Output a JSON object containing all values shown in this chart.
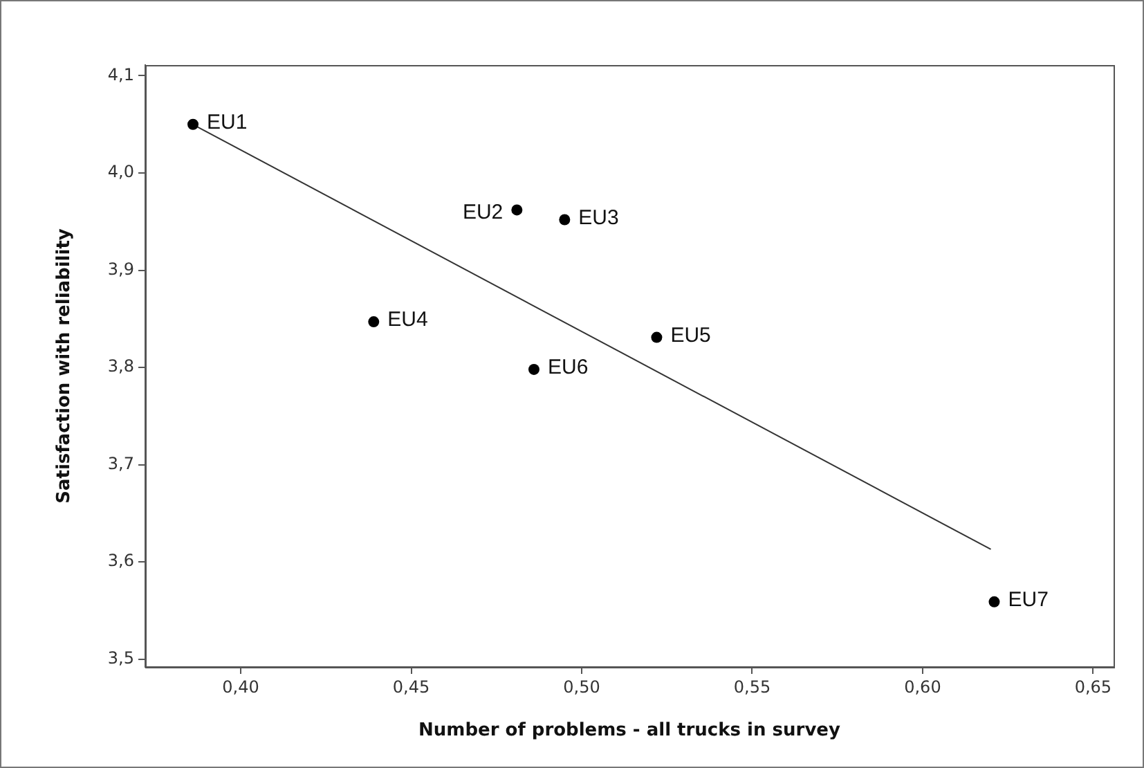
{
  "chart_data": {
    "type": "scatter",
    "xlabel": "Number of problems - all trucks in survey",
    "ylabel": "Satisfaction with reliability",
    "xlim": [
      0.372,
      0.656
    ],
    "ylim": [
      3.492,
      4.111
    ],
    "xticks": [
      {
        "value": 0.4,
        "label": "0,40"
      },
      {
        "value": 0.45,
        "label": "0,45"
      },
      {
        "value": 0.5,
        "label": "0,50"
      },
      {
        "value": 0.55,
        "label": "0,55"
      },
      {
        "value": 0.6,
        "label": "0,60"
      },
      {
        "value": 0.65,
        "label": "0,65"
      }
    ],
    "yticks": [
      {
        "value": 3.5,
        "label": "3,5"
      },
      {
        "value": 3.6,
        "label": "3,6"
      },
      {
        "value": 3.7,
        "label": "3,7"
      },
      {
        "value": 3.8,
        "label": "3,8"
      },
      {
        "value": 3.9,
        "label": "3,9"
      },
      {
        "value": 4.0,
        "label": "4,0"
      },
      {
        "value": 4.1,
        "label": "4,1"
      }
    ],
    "series": [
      {
        "color": "#000000",
        "marker": "circle",
        "x": [
          0.386,
          0.481,
          0.495,
          0.439,
          0.522,
          0.486,
          0.621
        ],
        "values": [
          4.05,
          3.962,
          3.952,
          3.847,
          3.831,
          3.798,
          3.559
        ]
      },
      {
        "type": "line",
        "marker": "none",
        "color": "#333333",
        "x": [
          0.387,
          0.62
        ],
        "values": [
          4.048,
          3.613
        ]
      }
    ],
    "annotations": [
      {
        "text": "EU1",
        "x": 0.386,
        "y": 4.05
      },
      {
        "text": "EU2",
        "x": 0.481,
        "y": 3.962
      },
      {
        "text": "EU3",
        "x": 0.495,
        "y": 3.952
      },
      {
        "text": "EU4",
        "x": 0.439,
        "y": 3.847
      },
      {
        "text": "EU5",
        "x": 0.522,
        "y": 3.831
      },
      {
        "text": "EU6",
        "x": 0.486,
        "y": 3.798
      },
      {
        "text": "EU7",
        "x": 0.621,
        "y": 3.559
      }
    ]
  }
}
